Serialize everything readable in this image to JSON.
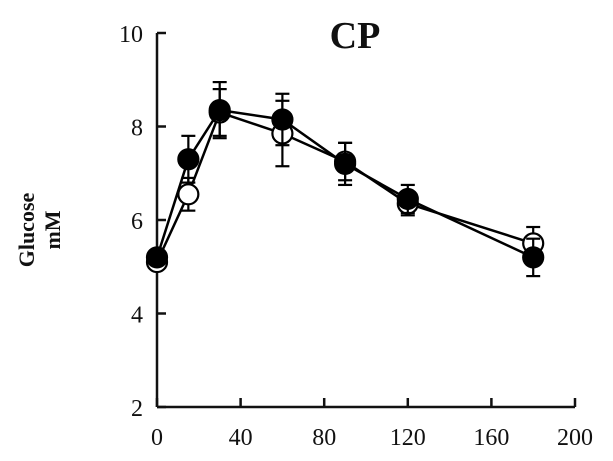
{
  "chart_data": {
    "type": "line",
    "title": "CP",
    "ylabel_lines": [
      "Glucose",
      "mM"
    ],
    "xlabel": "",
    "xlim": [
      0,
      200
    ],
    "ylim": [
      2,
      10
    ],
    "xticks": [
      0,
      40,
      80,
      120,
      160,
      200
    ],
    "yticks": [
      2,
      4,
      6,
      8,
      10
    ],
    "grid": false,
    "legend": "none",
    "series": [
      {
        "marker": "filled-circle",
        "color": "#000000",
        "x": [
          0,
          15,
          30,
          60,
          90,
          120,
          180
        ],
        "y": [
          5.2,
          7.3,
          8.35,
          8.15,
          7.2,
          6.45,
          5.2
        ],
        "err": [
          0.1,
          0.5,
          0.6,
          0.55,
          0.45,
          0.3,
          0.4
        ]
      },
      {
        "marker": "open-circle",
        "color": "#000000",
        "x": [
          0,
          15,
          30,
          60,
          90,
          120,
          180
        ],
        "y": [
          5.1,
          6.55,
          8.3,
          7.85,
          7.25,
          6.35,
          5.5
        ],
        "err": [
          0.1,
          0.35,
          0.5,
          0.7,
          0.4,
          0.25,
          0.35
        ]
      }
    ]
  }
}
